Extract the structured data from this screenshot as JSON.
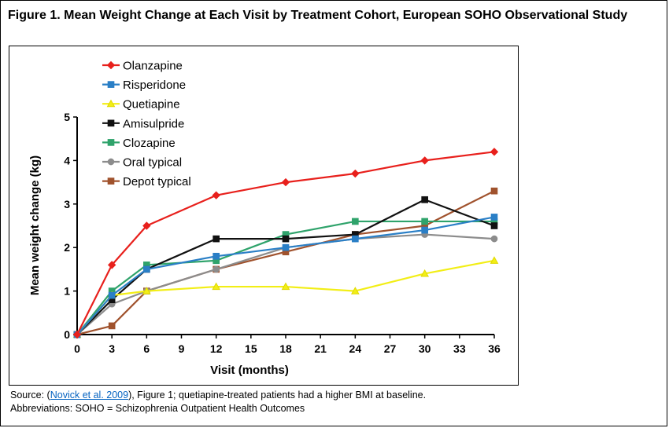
{
  "figure_title": "Figure 1. Mean Weight Change at Each Visit by Treatment Cohort, European SOHO Observational Study",
  "source": {
    "prefix": "Source: (",
    "link_text": "Novick et al. 2009",
    "suffix": "), Figure 1; quetiapine-treated patients had a higher BMI at baseline."
  },
  "abbreviations": "Abbreviations: SOHO = Schizophrenia Outpatient Health Outcomes",
  "chart_data": {
    "type": "line",
    "title": "",
    "xlabel": "Visit (months)",
    "ylabel": "Mean weight change (kg)",
    "x": [
      0,
      3,
      6,
      12,
      18,
      24,
      30,
      36
    ],
    "xticks": [
      0,
      3,
      6,
      9,
      12,
      15,
      18,
      21,
      24,
      27,
      30,
      33,
      36
    ],
    "xlim": [
      0,
      36
    ],
    "yticks": [
      0,
      1,
      2,
      3,
      4,
      5
    ],
    "ylim": [
      0,
      5
    ],
    "grid": false,
    "legend_position": "top-left",
    "series": [
      {
        "name": "Olanzapine",
        "color": "#e8201c",
        "marker": "diamond",
        "values": [
          0,
          1.6,
          2.5,
          3.2,
          3.5,
          3.7,
          4.0,
          4.2
        ]
      },
      {
        "name": "Risperidone",
        "color": "#2a7fc6",
        "marker": "square",
        "values": [
          0,
          0.9,
          1.5,
          1.8,
          2.0,
          2.2,
          2.4,
          2.7
        ]
      },
      {
        "name": "Quetiapine",
        "color": "#f2ee16",
        "marker": "triangle",
        "values": [
          0,
          0.9,
          1.0,
          1.1,
          1.1,
          1.0,
          1.4,
          1.7
        ]
      },
      {
        "name": "Amisulpride",
        "color": "#111111",
        "marker": "square",
        "values": [
          0,
          0.8,
          1.5,
          2.2,
          2.2,
          2.3,
          3.1,
          2.5
        ]
      },
      {
        "name": "Clozapine",
        "color": "#2fa36b",
        "marker": "square",
        "values": [
          0,
          1.0,
          1.6,
          1.7,
          2.3,
          2.6,
          2.6,
          2.6
        ]
      },
      {
        "name": "Oral typical",
        "color": "#8c8c8c",
        "marker": "circle",
        "values": [
          0,
          0.7,
          1.0,
          1.5,
          2.0,
          2.2,
          2.3,
          2.2
        ]
      },
      {
        "name": "Depot typical",
        "color": "#a0522d",
        "marker": "square",
        "values": [
          0,
          0.2,
          1.0,
          1.5,
          1.9,
          2.3,
          2.5,
          3.3
        ]
      }
    ]
  }
}
